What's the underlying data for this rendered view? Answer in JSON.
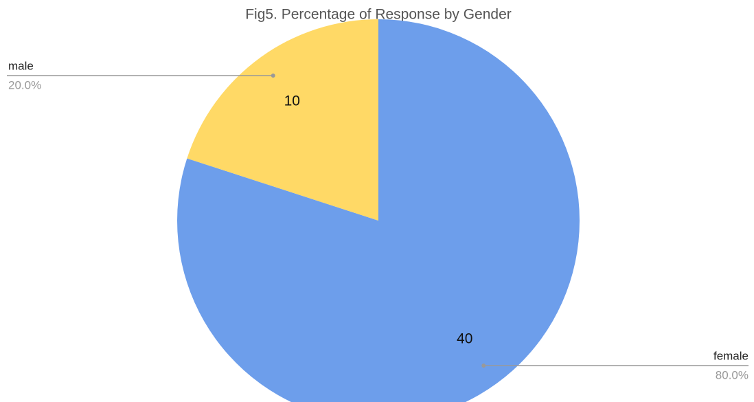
{
  "chart_data": {
    "type": "pie",
    "title": "Fig5. Percentage of Response by Gender",
    "categories": [
      "female",
      "male"
    ],
    "values": [
      40,
      10
    ],
    "percent_labels": [
      "80.0%",
      "20.0%"
    ],
    "colors": [
      "#6d9eeb",
      "#ffd966"
    ]
  }
}
